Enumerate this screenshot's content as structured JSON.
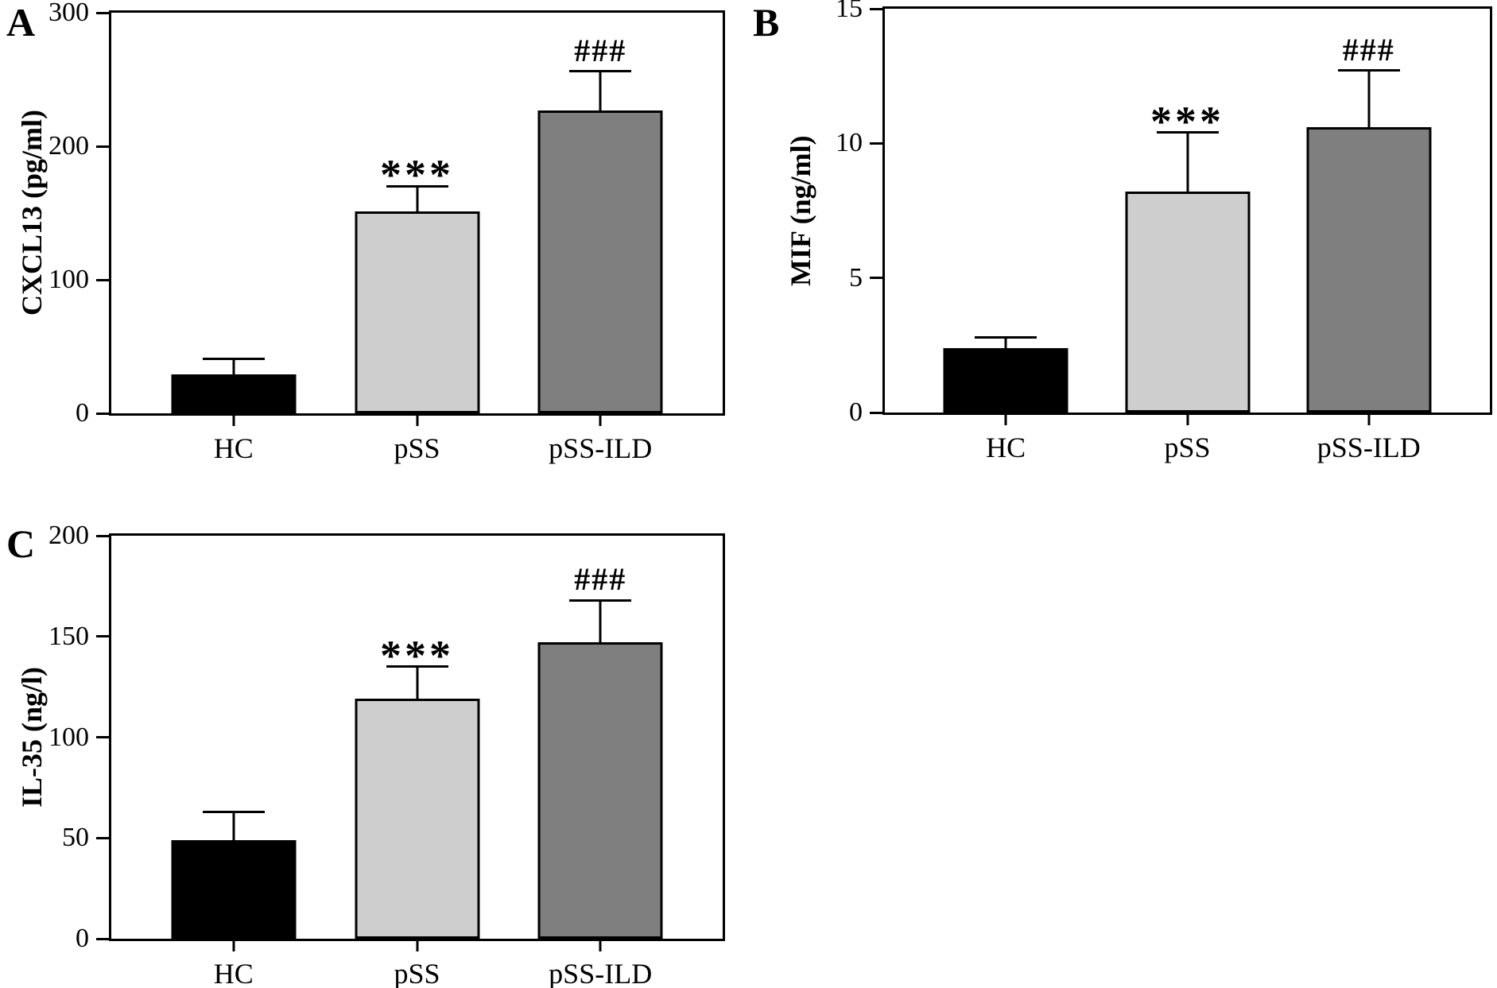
{
  "chart_data": [
    {
      "type": "bar",
      "panel_letter": "A",
      "title": "",
      "xlabel": "",
      "ylabel": "CXCL13 (pg/ml)",
      "categories": [
        "HC",
        "pSS",
        "pSS-ILD"
      ],
      "values": [
        29,
        151,
        227
      ],
      "errors_plus": [
        12,
        19,
        29
      ],
      "annotations": [
        "",
        "***",
        "###"
      ],
      "bar_colors": [
        "#000000",
        "#cecece",
        "#7f7f7f"
      ],
      "bar_border_color": "#000000",
      "ylim": [
        0,
        300
      ],
      "yticks": [
        0,
        100,
        200,
        300
      ],
      "grid": false,
      "legend": false
    },
    {
      "type": "bar",
      "panel_letter": "B",
      "title": "",
      "xlabel": "",
      "ylabel": "MIF (ng/ml)",
      "categories": [
        "HC",
        "pSS",
        "pSS-ILD"
      ],
      "values": [
        2.4,
        8.2,
        10.6
      ],
      "errors_plus": [
        0.4,
        2.2,
        2.1
      ],
      "annotations": [
        "",
        "***",
        "###"
      ],
      "bar_colors": [
        "#000000",
        "#cecece",
        "#7f7f7f"
      ],
      "bar_border_color": "#000000",
      "ylim": [
        0,
        15
      ],
      "yticks": [
        0,
        5,
        10,
        15
      ],
      "grid": false,
      "legend": false
    },
    {
      "type": "bar",
      "panel_letter": "C",
      "title": "",
      "xlabel": "",
      "ylabel": "IL-35 (ng/l)",
      "categories": [
        "HC",
        "pSS",
        "pSS-ILD"
      ],
      "values": [
        49,
        119,
        147
      ],
      "errors_plus": [
        14,
        16,
        21
      ],
      "annotations": [
        "",
        "***",
        "###"
      ],
      "bar_colors": [
        "#000000",
        "#cecece",
        "#7f7f7f"
      ],
      "bar_border_color": "#000000",
      "ylim": [
        0,
        200
      ],
      "yticks": [
        0,
        50,
        100,
        150,
        200
      ],
      "grid": false,
      "legend": false
    }
  ]
}
